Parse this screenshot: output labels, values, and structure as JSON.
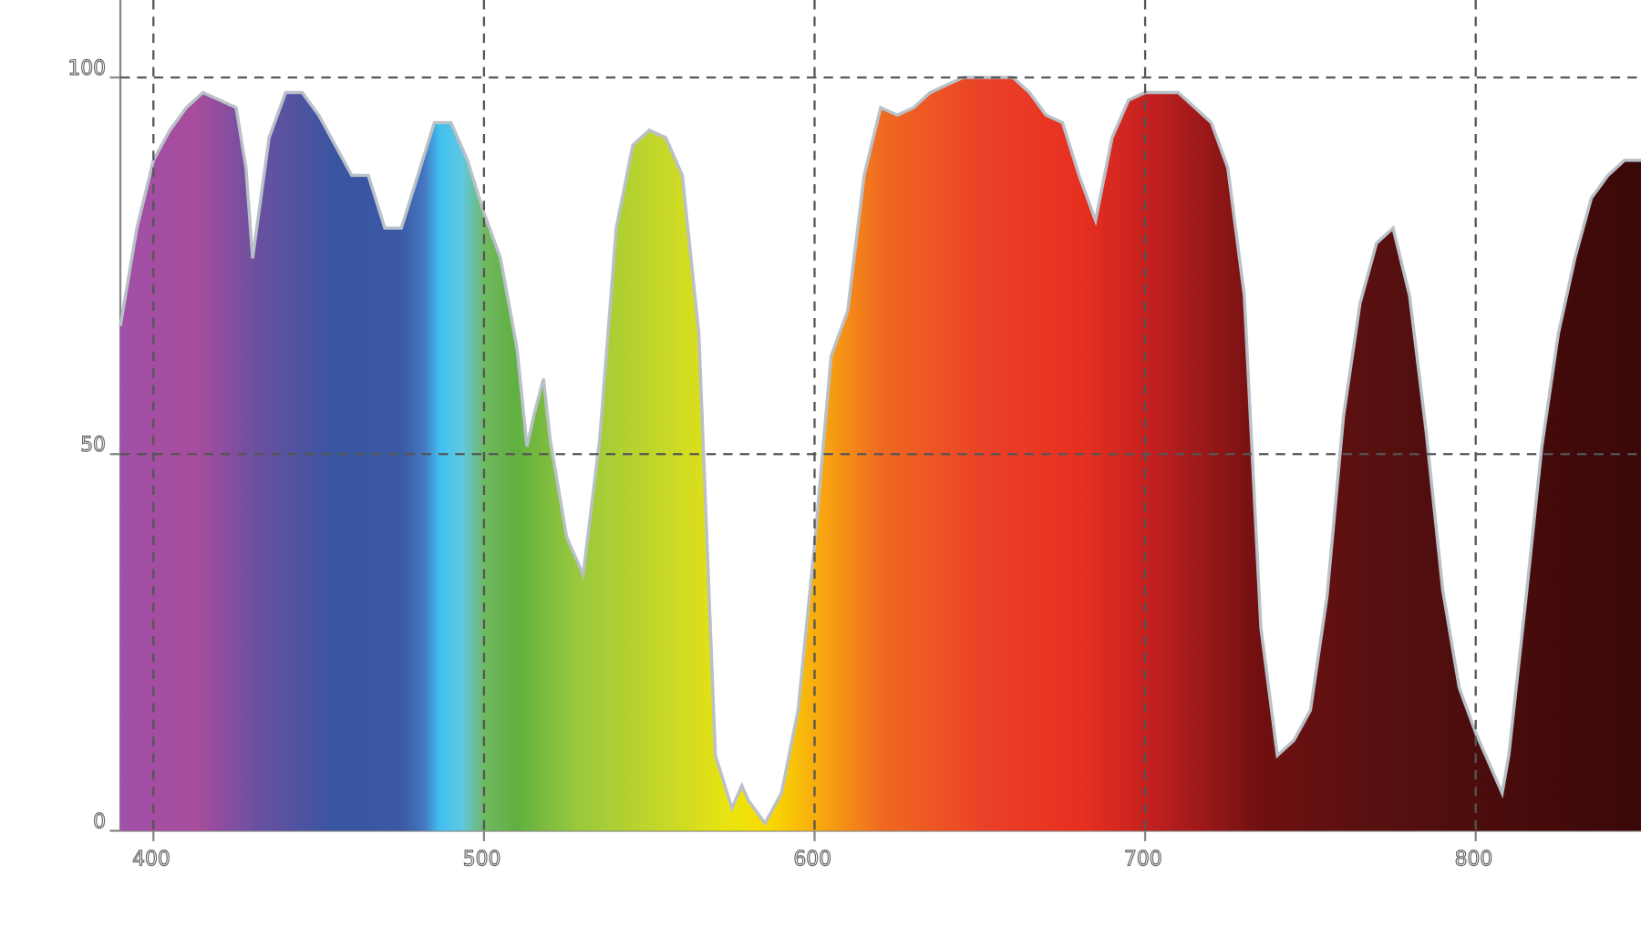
{
  "chart_data": {
    "type": "area",
    "x": [
      390,
      395,
      400,
      405,
      410,
      415,
      420,
      425,
      428,
      430,
      435,
      440,
      445,
      450,
      455,
      460,
      465,
      470,
      475,
      480,
      485,
      490,
      495,
      500,
      505,
      510,
      513,
      515,
      518,
      520,
      525,
      530,
      535,
      540,
      545,
      550,
      555,
      560,
      565,
      570,
      575,
      578,
      580,
      585,
      590,
      595,
      600,
      605,
      610,
      615,
      620,
      625,
      630,
      635,
      640,
      645,
      650,
      655,
      660,
      665,
      670,
      675,
      680,
      685,
      690,
      695,
      700,
      705,
      710,
      715,
      720,
      725,
      730,
      735,
      740,
      745,
      750,
      755,
      760,
      765,
      770,
      775,
      780,
      785,
      790,
      795,
      800,
      805,
      808,
      810,
      815,
      820,
      825,
      830,
      835,
      840,
      845,
      850
    ],
    "values": [
      67,
      80,
      89,
      93,
      96,
      98,
      97,
      96,
      88,
      76,
      92,
      98,
      98,
      95,
      91,
      87,
      87,
      80,
      80,
      87,
      94,
      94,
      89,
      82,
      76,
      64,
      51,
      55,
      60,
      52,
      39,
      34,
      52,
      80,
      91,
      93,
      92,
      87,
      66,
      10,
      3,
      6,
      4,
      1,
      5,
      16,
      38,
      63,
      69,
      87,
      96,
      95,
      96,
      98,
      99,
      100,
      100,
      100,
      100,
      98,
      95,
      94,
      87,
      81,
      92,
      97,
      98,
      98,
      98,
      96,
      94,
      88,
      71,
      27,
      10,
      12,
      16,
      31,
      55,
      70,
      78,
      80,
      71,
      53,
      32,
      19,
      13,
      8,
      5,
      10,
      30,
      51,
      66,
      76,
      84,
      87,
      89,
      89
    ],
    "xlim": [
      390,
      850
    ],
    "ylim": [
      0,
      110
    ],
    "xticks": [
      400,
      500,
      600,
      700,
      800
    ],
    "yticks": [
      0,
      50,
      100
    ],
    "grid": true
  }
}
